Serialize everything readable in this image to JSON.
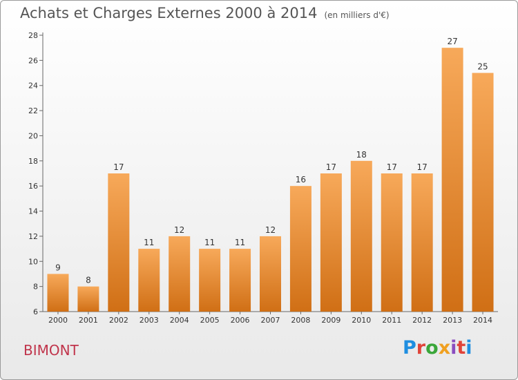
{
  "header": {
    "title": "Achats et Charges Externes 2000 à 2014",
    "unit": "(en milliers d'€)"
  },
  "commune": "BIMONT",
  "logo": {
    "letters": [
      {
        "ch": "P",
        "color": "#1f8ee0"
      },
      {
        "ch": "r",
        "color": "#e0443a"
      },
      {
        "ch": "o",
        "color": "#3aa63a"
      },
      {
        "ch": "x",
        "color": "#f0a020"
      },
      {
        "ch": "i",
        "color": "#8a4dc0"
      },
      {
        "ch": "t",
        "color": "#e0443a"
      },
      {
        "ch": "i",
        "color": "#1f8ee0"
      }
    ]
  },
  "chart_data": {
    "type": "bar",
    "title": "Achats et Charges Externes 2000 à 2014",
    "subtitle": "(en milliers d'€)",
    "categories": [
      "2000",
      "2001",
      "2002",
      "2003",
      "2004",
      "2005",
      "2006",
      "2007",
      "2008",
      "2009",
      "2010",
      "2011",
      "2012",
      "2013",
      "2014"
    ],
    "values": [
      9,
      8,
      17,
      11,
      12,
      11,
      11,
      12,
      16,
      17,
      18,
      17,
      17,
      27,
      25
    ],
    "ylim": [
      6,
      28
    ],
    "yticks": [
      6,
      8,
      10,
      12,
      14,
      16,
      18,
      20,
      22,
      24,
      26,
      28
    ],
    "grid": false,
    "bar_color_top": "#f7a95a",
    "bar_color_bottom": "#d06f15"
  }
}
